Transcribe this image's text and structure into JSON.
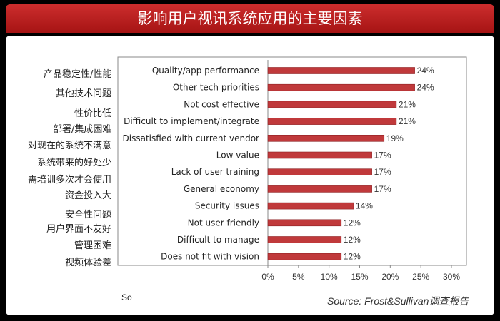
{
  "title": "影响用户视讯系统应用的主要因素",
  "left_labels": [
    "产品稳定性/性能",
    "其他技术问题",
    "性价比低",
    "部署/集成困难",
    "对现在的系统不满意",
    "系统带来的好处少",
    "需培训多次才会使用",
    "资金投入大",
    "安全性问题",
    "用户界面不友好",
    "管理困难",
    "视频体验差"
  ],
  "footer_left": "So",
  "source": "Source: Frost&Sullivan调查报告",
  "colors": {
    "bar": "#c0393b",
    "bar_edge": "#8e2224",
    "title_bg": "#b51f1f"
  },
  "chart_data": {
    "type": "bar",
    "orientation": "horizontal",
    "categories": [
      "Quality/app performance",
      "Other tech priorities",
      "Not cost effective",
      "Difficult to implement/integrate",
      "Dissatisfied with current vendor",
      "Low value",
      "Lack of user training",
      "General economy",
      "Security issues",
      "Not user friendly",
      "Difficult to manage",
      "Does not fit with vision"
    ],
    "values": [
      24,
      24,
      21,
      21,
      19,
      17,
      17,
      17,
      14,
      12,
      12,
      12
    ],
    "value_labels": [
      "24%",
      "24%",
      "21%",
      "21%",
      "19%",
      "17%",
      "17%",
      "17%",
      "14%",
      "12%",
      "12%",
      "12%"
    ],
    "xlim": [
      0,
      30
    ],
    "xticks": [
      0,
      5,
      10,
      15,
      20,
      25,
      30
    ],
    "xtick_labels": [
      "0%",
      "5%",
      "10%",
      "15%",
      "20%",
      "25%",
      "30%"
    ],
    "grid": false,
    "legend": "none"
  }
}
